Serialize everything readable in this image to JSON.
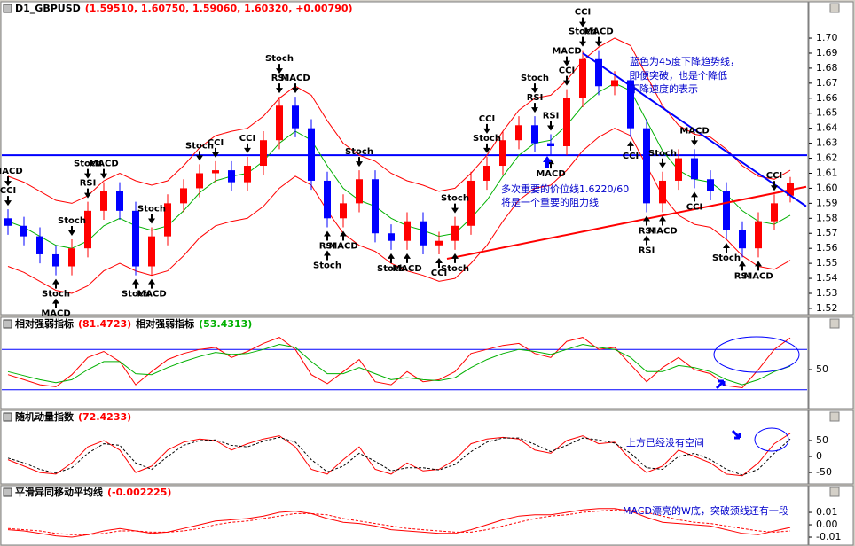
{
  "chart_data": [
    {
      "type": "candlestick",
      "title": "D1_GBPUSD",
      "subtitle": "(1.59510, 1.60750, 1.59060, 1.60320, +0.00790)",
      "up_color": "#ff0000",
      "down_color": "#0000ff",
      "ylim": [
        1.5176,
        1.7136
      ],
      "yticks": [
        1.52,
        1.53,
        1.54,
        1.55,
        1.56,
        1.57,
        1.58,
        1.59,
        {
          "value": 1.6,
          "label": "1.60"
        },
        1.61,
        1.62,
        1.63,
        1.64,
        1.65,
        1.66,
        1.67,
        1.68,
        1.69,
        {
          "value": 1.7,
          "label": "1.70"
        }
      ],
      "open": [
        1.58,
        1.575,
        1.568,
        1.556,
        1.548,
        1.56,
        1.585,
        1.598,
        1.585,
        1.548,
        1.568,
        1.59,
        1.6,
        1.61,
        1.612,
        1.604,
        1.615,
        1.632,
        1.655,
        1.64,
        1.605,
        1.58,
        1.59,
        1.606,
        1.57,
        1.565,
        1.578,
        1.562,
        1.565,
        1.575,
        1.605,
        1.615,
        1.632,
        1.642,
        1.63,
        1.628,
        1.66,
        1.686,
        1.668,
        1.672,
        1.64,
        1.59,
        1.605,
        1.62,
        1.606,
        1.598,
        1.572,
        1.56,
        1.578,
        1.5951
      ],
      "high": [
        1.586,
        1.581,
        1.574,
        1.562,
        1.566,
        1.591,
        1.604,
        1.604,
        1.591,
        1.574,
        1.596,
        1.606,
        1.616,
        1.618,
        1.618,
        1.621,
        1.638,
        1.661,
        1.661,
        1.646,
        1.611,
        1.596,
        1.612,
        1.612,
        1.576,
        1.584,
        1.584,
        1.571,
        1.581,
        1.611,
        1.621,
        1.638,
        1.648,
        1.648,
        1.636,
        1.666,
        1.692,
        1.692,
        1.678,
        1.678,
        1.646,
        1.611,
        1.626,
        1.626,
        1.612,
        1.604,
        1.578,
        1.584,
        1.596,
        1.6075
      ],
      "low": [
        1.569,
        1.562,
        1.55,
        1.542,
        1.542,
        1.554,
        1.579,
        1.579,
        1.542,
        1.542,
        1.562,
        1.584,
        1.594,
        1.604,
        1.598,
        1.598,
        1.609,
        1.626,
        1.634,
        1.599,
        1.574,
        1.574,
        1.584,
        1.564,
        1.559,
        1.559,
        1.556,
        1.556,
        1.559,
        1.569,
        1.599,
        1.609,
        1.626,
        1.624,
        1.622,
        1.622,
        1.654,
        1.662,
        1.662,
        1.634,
        1.584,
        1.584,
        1.599,
        1.6,
        1.592,
        1.566,
        1.554,
        1.554,
        1.572,
        1.5906
      ],
      "close": [
        1.575,
        1.568,
        1.556,
        1.548,
        1.56,
        1.585,
        1.598,
        1.585,
        1.548,
        1.568,
        1.59,
        1.6,
        1.61,
        1.612,
        1.604,
        1.615,
        1.632,
        1.655,
        1.64,
        1.605,
        1.58,
        1.59,
        1.606,
        1.57,
        1.565,
        1.578,
        1.562,
        1.565,
        1.575,
        1.605,
        1.615,
        1.632,
        1.642,
        1.63,
        1.628,
        1.66,
        1.686,
        1.668,
        1.672,
        1.64,
        1.59,
        1.605,
        1.62,
        1.606,
        1.598,
        1.572,
        1.56,
        1.578,
        1.59,
        1.6032
      ],
      "series": [
        {
          "color": "#ff0000",
          "values": [
            1.608,
            1.604,
            1.598,
            1.592,
            1.59,
            1.595,
            1.605,
            1.61,
            1.605,
            1.602,
            1.605,
            1.615,
            1.627,
            1.635,
            1.638,
            1.64,
            1.648,
            1.66,
            1.668,
            1.662,
            1.645,
            1.63,
            1.622,
            1.618,
            1.61,
            1.605,
            1.602,
            1.598,
            1.6,
            1.61,
            1.622,
            1.638,
            1.652,
            1.66,
            1.662,
            1.672,
            1.685,
            1.694,
            1.7,
            1.695,
            1.675,
            1.655,
            1.642,
            1.636,
            1.634,
            1.626,
            1.615,
            1.608,
            1.606,
            1.612
          ]
        },
        {
          "color": "#00b000",
          "values": [
            1.578,
            1.574,
            1.568,
            1.562,
            1.56,
            1.565,
            1.575,
            1.58,
            1.575,
            1.572,
            1.575,
            1.585,
            1.597,
            1.605,
            1.608,
            1.61,
            1.618,
            1.63,
            1.638,
            1.632,
            1.615,
            1.6,
            1.592,
            1.588,
            1.58,
            1.575,
            1.572,
            1.568,
            1.57,
            1.58,
            1.592,
            1.608,
            1.622,
            1.63,
            1.632,
            1.642,
            1.655,
            1.664,
            1.67,
            1.665,
            1.645,
            1.625,
            1.612,
            1.606,
            1.604,
            1.596,
            1.585,
            1.578,
            1.576,
            1.582
          ]
        },
        {
          "color": "#ff0000",
          "values": [
            1.548,
            1.544,
            1.538,
            1.532,
            1.53,
            1.535,
            1.545,
            1.55,
            1.545,
            1.542,
            1.545,
            1.555,
            1.567,
            1.575,
            1.578,
            1.58,
            1.588,
            1.6,
            1.608,
            1.602,
            1.585,
            1.57,
            1.562,
            1.558,
            1.55,
            1.545,
            1.542,
            1.538,
            1.54,
            1.55,
            1.562,
            1.578,
            1.592,
            1.6,
            1.602,
            1.612,
            1.625,
            1.634,
            1.64,
            1.635,
            1.615,
            1.595,
            1.582,
            1.576,
            1.574,
            1.566,
            1.555,
            1.548,
            1.546,
            1.552
          ]
        }
      ],
      "hline": {
        "value": 1.622,
        "color": "#0000ff"
      },
      "trendlines": [
        {
          "color": "#ff0000",
          "points": [
            [
              27.5,
              1.553
            ],
            [
              50,
              1.601
            ]
          ]
        },
        {
          "color": "#0000ff",
          "points": [
            [
              36,
              1.69
            ],
            [
              50,
              1.588
            ]
          ]
        }
      ],
      "sell_signals": [
        {
          "label": "CCI",
          "bar": 0
        },
        {
          "label": "MACD",
          "bar": 0
        },
        {
          "label": "RSI",
          "bar": 5
        },
        {
          "label": "Stoch",
          "bar": 5
        },
        {
          "label": "MACD",
          "bar": 6
        },
        {
          "label": "Stoch",
          "bar": 4
        },
        {
          "label": "Stoch",
          "bar": 9
        },
        {
          "label": "Stoch",
          "bar": 12
        },
        {
          "label": "CCI",
          "bar": 13
        },
        {
          "label": "CCI",
          "bar": 15
        },
        {
          "label": "RSI",
          "bar": 17
        },
        {
          "label": "Stoch",
          "bar": 17
        },
        {
          "label": "MACD",
          "bar": 18
        },
        {
          "label": "Stoch",
          "bar": 22
        },
        {
          "label": "Stoch",
          "bar": 28
        },
        {
          "label": "Stoch",
          "bar": 30
        },
        {
          "label": "CCI",
          "bar": 30
        },
        {
          "label": "RSI",
          "bar": 33
        },
        {
          "label": "Stoch",
          "bar": 33
        },
        {
          "label": "RSI",
          "bar": 34
        },
        {
          "label": "CCI",
          "bar": 35
        },
        {
          "label": "MACD",
          "bar": 35
        },
        {
          "label": "Stoch",
          "bar": 36
        },
        {
          "label": "CCI",
          "bar": 36
        },
        {
          "label": "MACD",
          "bar": 37
        },
        {
          "label": "Stoch",
          "bar": 41
        },
        {
          "label": "MACD",
          "bar": 43
        },
        {
          "label": "CCI",
          "bar": 48
        }
      ],
      "buy_signals": [
        {
          "label": "Stoch",
          "bar": 3
        },
        {
          "label": "MACD",
          "bar": 3
        },
        {
          "label": "Stoch",
          "bar": 8
        },
        {
          "label": "MACD",
          "bar": 9
        },
        {
          "label": "RSI",
          "bar": 20
        },
        {
          "label": "Stoch",
          "bar": 20
        },
        {
          "label": "MACD",
          "bar": 21
        },
        {
          "label": "Stoch",
          "bar": 24
        },
        {
          "label": "MACD",
          "bar": 25
        },
        {
          "label": "CCI",
          "bar": 27
        },
        {
          "label": "Stoch",
          "bar": 28
        },
        {
          "label": "MACD",
          "bar": 34
        },
        {
          "label": "CCI",
          "bar": 39
        },
        {
          "label": "RSI",
          "bar": 40
        },
        {
          "label": "RSI",
          "bar": 40
        },
        {
          "label": "MACD",
          "bar": 41
        },
        {
          "label": "CCI",
          "bar": 43
        },
        {
          "label": "Stoch",
          "bar": 45
        },
        {
          "label": "RSI",
          "bar": 46
        },
        {
          "label": "MACD",
          "bar": 47
        }
      ],
      "annotations": [
        "蓝色为45度下降趋势线，",
        "即便突破，也是个降低",
        "下降速度的表示",
        "多次重要的价位线1.6220/60",
        "将是一个重要的阻力线"
      ]
    },
    {
      "type": "line",
      "ylim": [
        14,
        86
      ],
      "yticks": [
        50
      ],
      "hlines": [
        70,
        30
      ],
      "hline_color": "#0000ff",
      "series": [
        {
          "name": "相对强弱指标",
          "last_label": "(81.4723)",
          "color": "#ff0000",
          "values": [
            45,
            40,
            35,
            33,
            45,
            62,
            68,
            58,
            35,
            48,
            60,
            66,
            70,
            72,
            62,
            68,
            76,
            82,
            70,
            45,
            36,
            48,
            60,
            38,
            35,
            48,
            38,
            40,
            48,
            66,
            70,
            74,
            76,
            66,
            62,
            78,
            82,
            70,
            72,
            55,
            38,
            52,
            62,
            50,
            46,
            34,
            32,
            50,
            70,
            81.4723
          ]
        },
        {
          "name": "相对强弱指标",
          "last_label": "(53.4313)",
          "color": "#00b000",
          "values": [
            48,
            44,
            40,
            37,
            40,
            50,
            58,
            58,
            46,
            45,
            52,
            58,
            63,
            67,
            65,
            66,
            70,
            75,
            72,
            58,
            46,
            46,
            52,
            46,
            40,
            42,
            40,
            39,
            42,
            52,
            60,
            66,
            70,
            68,
            65,
            70,
            75,
            72,
            70,
            62,
            48,
            48,
            54,
            52,
            48,
            40,
            35,
            40,
            48,
            53.4313
          ]
        }
      ]
    },
    {
      "type": "line",
      "ylim": [
        -83,
        97
      ],
      "yticks": [
        50,
        0,
        -50
      ],
      "series": [
        {
          "name": "随机动量指数",
          "last_label": "(72.4233)",
          "color": "#ff0000",
          "values": [
            -10,
            -30,
            -50,
            -55,
            -20,
            30,
            50,
            20,
            -50,
            -30,
            20,
            45,
            55,
            50,
            20,
            40,
            55,
            65,
            30,
            -40,
            -55,
            -10,
            30,
            -40,
            -55,
            -20,
            -45,
            -40,
            -10,
            40,
            55,
            60,
            55,
            20,
            10,
            50,
            65,
            40,
            45,
            -10,
            -50,
            -30,
            20,
            0,
            -20,
            -55,
            -60,
            -20,
            40,
            72.4233
          ]
        },
        {
          "color": "#000000",
          "dash": true,
          "values": [
            -5,
            -20,
            -40,
            -52,
            -35,
            10,
            40,
            35,
            -20,
            -40,
            0,
            35,
            50,
            52,
            35,
            30,
            48,
            60,
            45,
            -10,
            -48,
            -30,
            10,
            -15,
            -45,
            -35,
            -35,
            -42,
            -25,
            15,
            45,
            58,
            58,
            38,
            15,
            35,
            58,
            52,
            42,
            10,
            -35,
            -40,
            0,
            10,
            -10,
            -40,
            -58,
            -40,
            10,
            55
          ]
        }
      ],
      "annotations": [
        "上方已经没有空间"
      ]
    },
    {
      "type": "line",
      "ylim": [
        -0.0157,
        0.0186
      ],
      "yticks": [
        0.01,
        {
          "value": 0,
          "label": "0.00"
        },
        -0.01
      ],
      "series": [
        {
          "name": "平滑异同移动平均线",
          "last_label": "(-0.002225)",
          "color": "#ff0000",
          "values": [
            -0.004,
            -0.005,
            -0.007,
            -0.009,
            -0.01,
            -0.008,
            -0.005,
            -0.003,
            -0.005,
            -0.007,
            -0.006,
            -0.003,
            0.0,
            0.003,
            0.004,
            0.005,
            0.007,
            0.01,
            0.011,
            0.009,
            0.005,
            0.002,
            0.001,
            -0.001,
            -0.004,
            -0.005,
            -0.006,
            -0.007,
            -0.007,
            -0.004,
            0.0,
            0.004,
            0.007,
            0.008,
            0.008,
            0.01,
            0.012,
            0.013,
            0.013,
            0.011,
            0.006,
            0.002,
            0.001,
            0.0,
            -0.001,
            -0.004,
            -0.007,
            -0.008,
            -0.005,
            -0.002225
          ]
        },
        {
          "color": "#ff0000",
          "dash": true,
          "values": [
            -0.003,
            -0.004,
            -0.005,
            -0.007,
            -0.008,
            -0.008,
            -0.007,
            -0.005,
            -0.005,
            -0.006,
            -0.006,
            -0.005,
            -0.003,
            0.0,
            0.002,
            0.003,
            0.005,
            0.007,
            0.009,
            0.009,
            0.008,
            0.005,
            0.003,
            0.001,
            -0.001,
            -0.003,
            -0.004,
            -0.005,
            -0.006,
            -0.006,
            -0.004,
            -0.001,
            0.002,
            0.005,
            0.007,
            0.008,
            0.01,
            0.011,
            0.012,
            0.012,
            0.01,
            0.007,
            0.004,
            0.002,
            0.001,
            -0.001,
            -0.003,
            -0.005,
            -0.006,
            -0.005
          ]
        }
      ],
      "annotations": [
        "MACD漂亮的W底，突破颈线还有一段"
      ]
    }
  ]
}
